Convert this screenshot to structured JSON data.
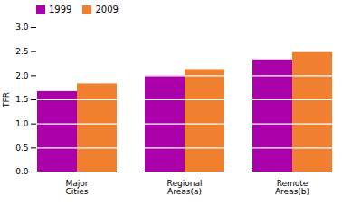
{
  "chart_data": {
    "type": "bar",
    "categories": [
      "Major\nCities",
      "Regional\nAreas(a)",
      "Remote\nAreas(b)"
    ],
    "series": [
      {
        "name": "1999",
        "color": "#AA00AA",
        "values": [
          1.67,
          2.0,
          2.33
        ]
      },
      {
        "name": "2009",
        "color": "#F08030",
        "values": [
          1.83,
          2.13,
          2.5
        ]
      }
    ],
    "ylabel": "TFR",
    "ylim": [
      0,
      3.0
    ],
    "yticks": [
      {
        "value": 0,
        "label": "0.0"
      },
      0.5,
      {
        "value": 1,
        "label": "1.0"
      },
      1.5,
      {
        "value": 2,
        "label": "2.0"
      },
      2.5,
      {
        "value": 3,
        "label": "3.0"
      }
    ],
    "grid": true,
    "legend": "upper left"
  }
}
